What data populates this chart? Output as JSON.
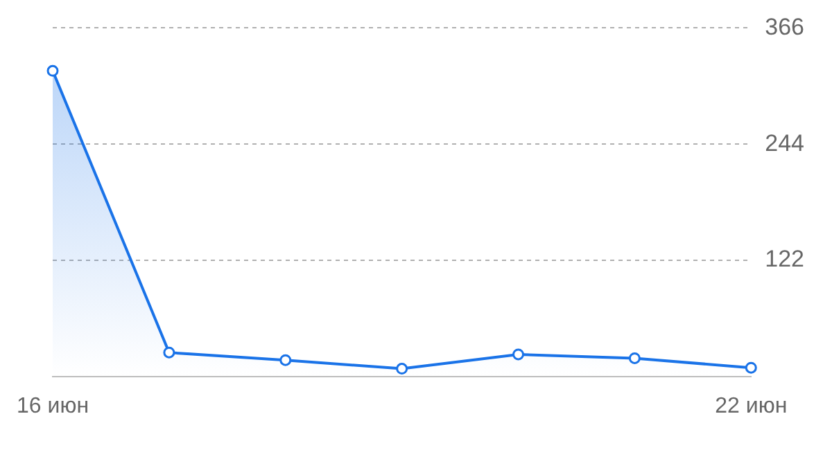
{
  "chart_data": {
    "type": "area",
    "categories": [
      "16 июн",
      null,
      null,
      null,
      null,
      null,
      "22 июн"
    ],
    "series": [
      {
        "color": "#1a73e8",
        "values": [
          321,
          25,
          17,
          8,
          23,
          19,
          9
        ]
      }
    ],
    "ylim": [
      0,
      366
    ],
    "yticks": [
      {
        "value": 0,
        "label": null
      },
      122,
      244,
      366
    ],
    "grid": "y",
    "legend": false,
    "marker": "circle",
    "line_style": "solid"
  }
}
